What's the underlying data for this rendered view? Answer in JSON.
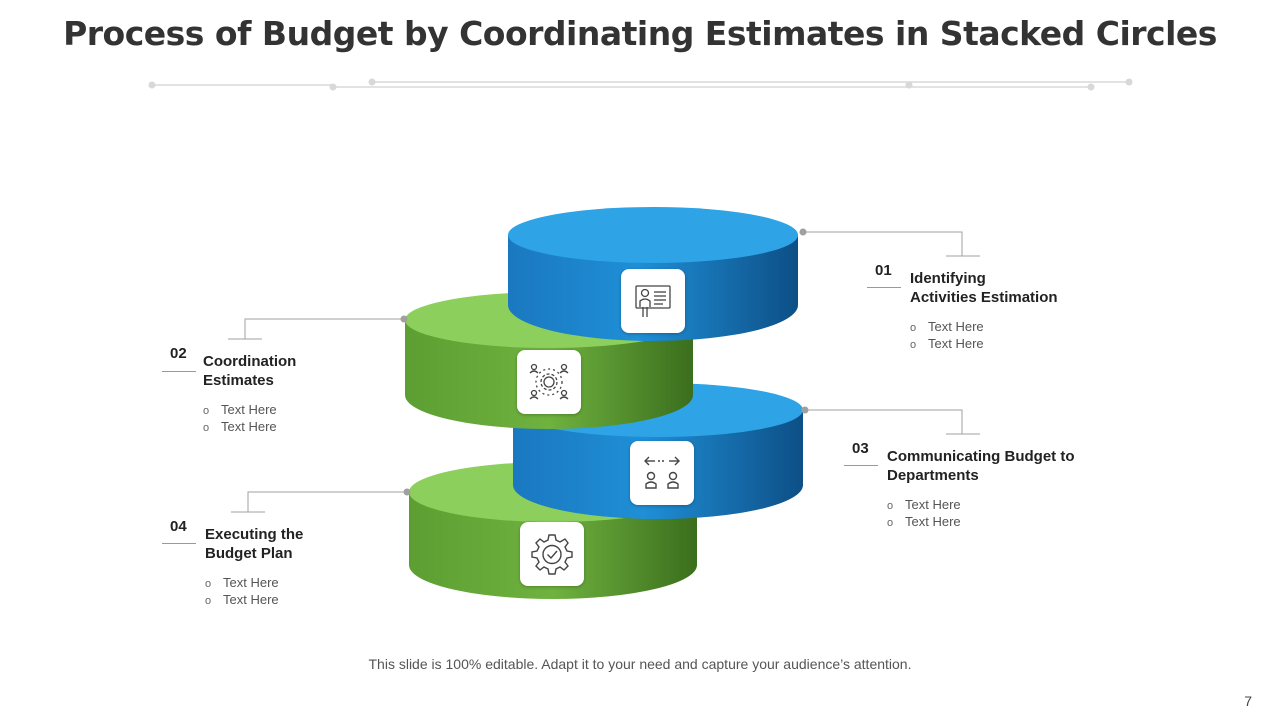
{
  "title": "Process of Budget by Coordinating Estimates in Stacked Circles",
  "colors": {
    "blue": "#2a9fe2",
    "green": "#7cc24e"
  },
  "steps": [
    {
      "number": "01",
      "title_line1": "Identifying",
      "title_line2": "Activities Estimation",
      "bullets": [
        "Text Here",
        "Text Here"
      ],
      "icon": "presentation-person-icon"
    },
    {
      "number": "02",
      "title_line1": "Coordination",
      "title_line2": "Estimates",
      "bullets": [
        "Text Here",
        "Text Here"
      ],
      "icon": "team-gear-icon"
    },
    {
      "number": "03",
      "title_line1": "Communicating Budget to",
      "title_line2": "Departments",
      "bullets": [
        "Text Here",
        "Text Here"
      ],
      "icon": "people-exchange-icon"
    },
    {
      "number": "04",
      "title_line1": "Executing the",
      "title_line2": "Budget Plan",
      "bullets": [
        "Text Here",
        "Text Here"
      ],
      "icon": "gear-check-icon"
    }
  ],
  "footer": "This slide is 100% editable. Adapt it to your need and capture your audience’s attention.",
  "page_number": "7"
}
